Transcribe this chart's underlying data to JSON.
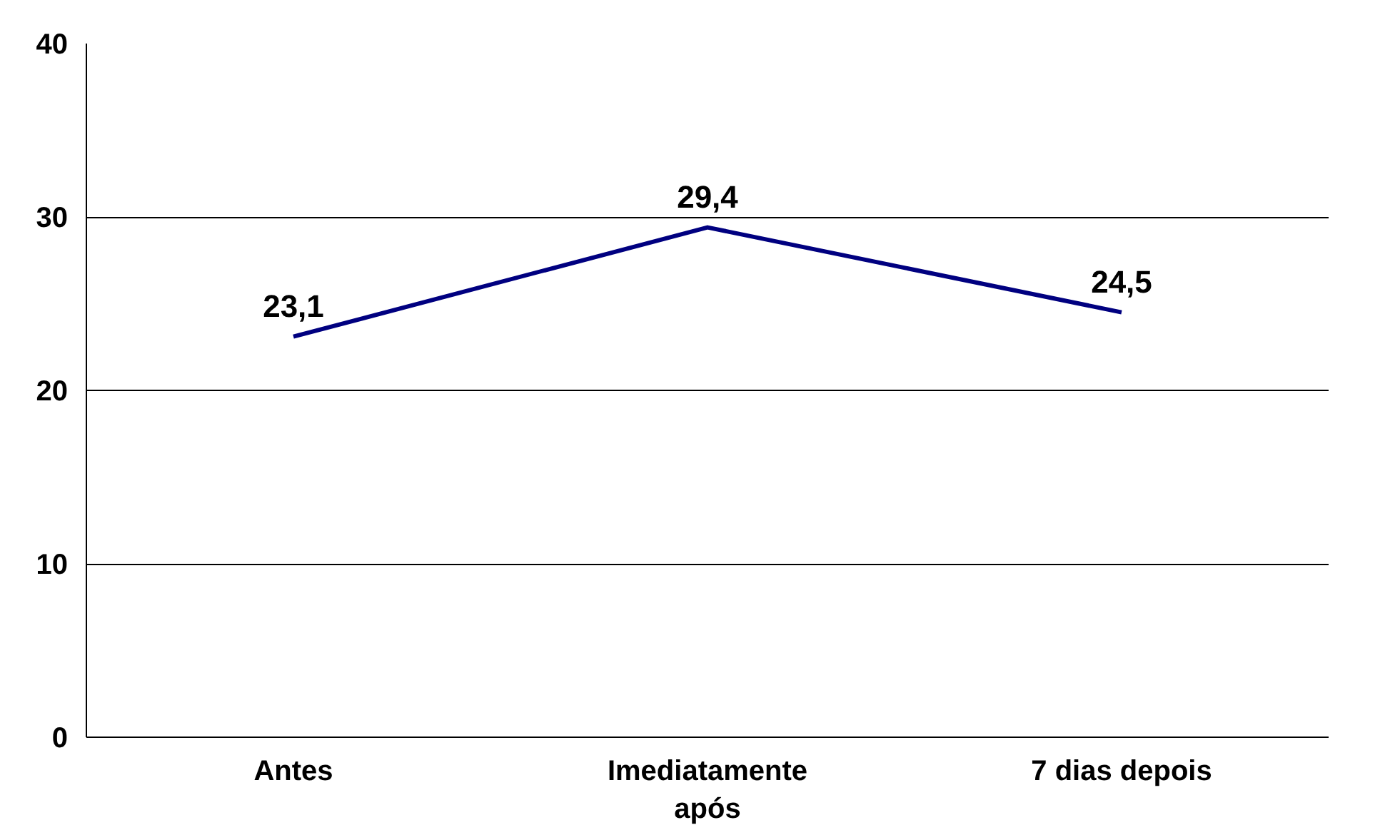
{
  "chart_data": {
    "type": "line",
    "categories": [
      "Antes",
      "Imediatamente após",
      "7 dias depois"
    ],
    "series": [
      {
        "color": "#000080",
        "values": [
          23.1,
          29.4,
          24.5
        ],
        "value_labels": [
          "23,1",
          "29,4",
          "24,5"
        ]
      }
    ],
    "ylim": [
      0,
      40
    ],
    "yticks": [
      0,
      10,
      20,
      30,
      40
    ],
    "grid": "y",
    "marker": "none",
    "line_style": "solid"
  }
}
